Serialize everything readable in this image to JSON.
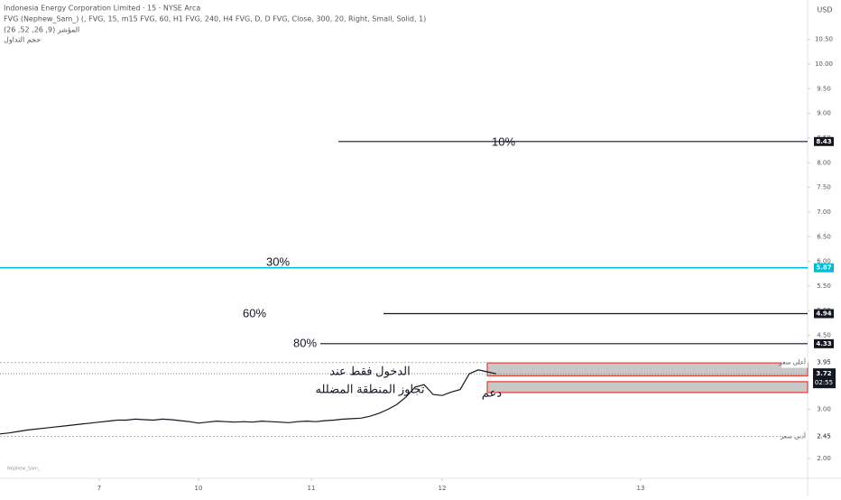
{
  "header": {
    "symbol": "Indonesia Energy Corporation Limited · 15 · NYSE Arca",
    "indicator": "FVG (Nephew_Sam_) (, FVG, 15, m15 FVG, 60, H1 FVG, 240, H4 FVG, D, D FVG, Close, 300, 20, Right, Small, Solid, 1)",
    "macd": "المؤشر (9, 26, 52, 26)",
    "volume": "حجم التداول",
    "currency": "USD",
    "watermark": "Nephew_Sam_"
  },
  "chart_data": {
    "type": "line",
    "x": [
      0,
      2,
      4,
      6,
      8,
      10,
      12,
      14,
      16,
      18,
      20,
      22,
      24,
      26,
      28,
      30,
      32,
      34,
      36,
      38,
      40,
      42,
      44,
      46,
      48,
      50,
      52,
      54,
      56,
      58,
      60,
      62,
      64,
      66,
      68,
      70,
      72,
      74,
      76,
      78,
      80,
      82,
      84,
      86,
      88,
      90,
      92,
      94,
      96,
      98,
      100,
      102,
      104,
      106,
      108,
      110
    ],
    "series": [
      {
        "color": "#131722",
        "values": [
          2.5,
          2.52,
          2.55,
          2.58,
          2.6,
          2.62,
          2.64,
          2.66,
          2.68,
          2.7,
          2.72,
          2.74,
          2.76,
          2.78,
          2.78,
          2.8,
          2.79,
          2.78,
          2.8,
          2.79,
          2.77,
          2.75,
          2.72,
          2.74,
          2.76,
          2.75,
          2.74,
          2.75,
          2.74,
          2.76,
          2.75,
          2.74,
          2.73,
          2.75,
          2.76,
          2.75,
          2.77,
          2.78,
          2.8,
          2.81,
          2.82,
          2.86,
          2.92,
          3.0,
          3.1,
          3.25,
          3.45,
          3.5,
          3.3,
          3.28,
          3.35,
          3.4,
          3.72,
          3.8,
          3.76,
          3.72
        ]
      }
    ],
    "xlim": [
      0,
      179
    ],
    "ylim": [
      1.6,
      11.3
    ],
    "xticks": [
      {
        "value": 22,
        "label": "7"
      },
      {
        "value": 44,
        "label": "10"
      },
      {
        "value": 69,
        "label": "11"
      },
      {
        "value": 98,
        "label": "12"
      },
      {
        "value": 142,
        "label": "13"
      }
    ],
    "yticks": [
      {
        "value": 10.5,
        "label": "10.50"
      },
      {
        "value": 10,
        "label": "10.00"
      },
      {
        "value": 9.5,
        "label": "9.50"
      },
      {
        "value": 9,
        "label": "9.00"
      },
      {
        "value": 8.5,
        "label": "8.50"
      },
      {
        "value": 8,
        "label": "8.00"
      },
      {
        "value": 7.5,
        "label": "7.50"
      },
      {
        "value": 7,
        "label": "7.00"
      },
      {
        "value": 6.5,
        "label": "6.50"
      },
      {
        "value": 6,
        "label": "6.00"
      },
      {
        "value": 5.5,
        "label": "5.50"
      },
      {
        "value": 5,
        "label": "5.00"
      },
      {
        "value": 4.5,
        "label": "4.50"
      },
      {
        "value": 3,
        "label": "3.00"
      },
      {
        "value": 2,
        "label": "2.00"
      }
    ],
    "levels": [
      {
        "value": 8.43,
        "label": "10%",
        "color": "#131722",
        "x_start": 75
      },
      {
        "value": 5.87,
        "label": "30%",
        "color": "#00bcd4",
        "x_start": 0
      },
      {
        "value": 4.94,
        "label": "60%",
        "color": "#131722",
        "x_start": 85
      },
      {
        "value": 4.33,
        "label": "80%",
        "color": "#131722",
        "x_start": 71
      }
    ],
    "zones": [
      {
        "top": 3.94,
        "bottom": 3.68
      },
      {
        "top": 3.56,
        "bottom": 3.34
      }
    ],
    "high": {
      "value": 3.95,
      "label": "أعلى سعر"
    },
    "low": {
      "value": 2.45,
      "label": "أدنى سعر"
    },
    "last_price": 3.72,
    "countdown": "02:55",
    "annotations": [
      "الدخول فقط عند",
      "تجاوز المنطقة المضلله",
      "دعم"
    ]
  }
}
